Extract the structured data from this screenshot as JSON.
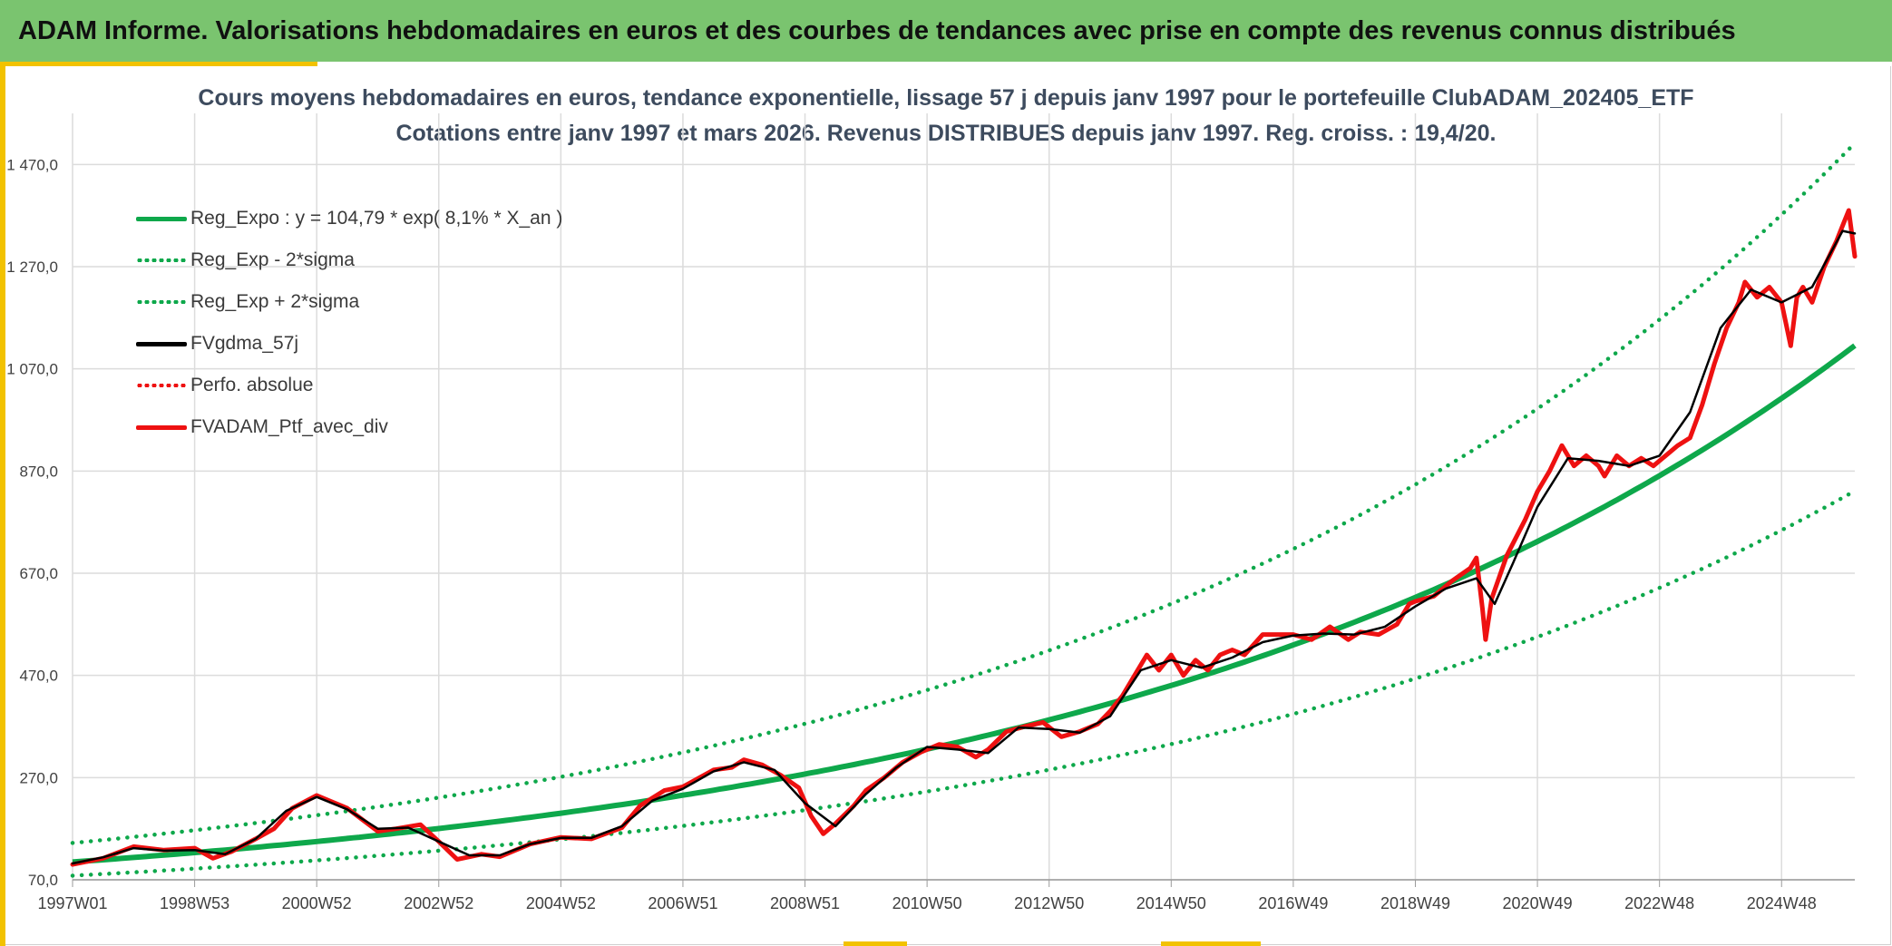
{
  "header": {
    "title": "ADAM Informe. Valorisations hebdomadaires en euros et des courbes de tendances avec prise en compte des revenus connus distribués"
  },
  "colors": {
    "banner": "#7ac46f",
    "accent": "#f2c200",
    "reg_green": "#0ea84b",
    "fvgdma_black": "#000000",
    "ptf_red": "#ee1111"
  },
  "chart_data": {
    "type": "line",
    "title": "Cours moyens hebdomadaires en euros, tendance exponentielle, lissage 57 j depuis janv 1997 pour le portefeuille ClubADAM_202405_ETF",
    "subtitle": "Cotations entre janv 1997 et mars 2026. Revenus DISTRIBUES depuis janv 1997. Reg. croiss. : 19,4/20.",
    "xlabel": "",
    "ylabel": "",
    "xlim": [
      1997.0,
      2026.2
    ],
    "ylim": [
      70,
      1570
    ],
    "y_ticks": [
      70,
      270,
      470,
      670,
      870,
      1070,
      1270,
      1470
    ],
    "y_tick_labels": [
      "70,0",
      "270,0",
      "470,0",
      "670,0",
      "870,0",
      "1 070,0",
      "1 270,0",
      "1 470,0"
    ],
    "x_ticks": [
      1997.0,
      1999.0,
      2001.0,
      2003.0,
      2005.0,
      2007.0,
      2009.0,
      2011.0,
      2013.0,
      2015.0,
      2017.0,
      2019.0,
      2021.0,
      2023.0,
      2025.0
    ],
    "x_tick_labels": [
      "1997W01",
      "1998W53",
      "2000W52",
      "2002W52",
      "2004W52",
      "2006W51",
      "2008W51",
      "2010W50",
      "2012W50",
      "2014W50",
      "2016W49",
      "2018W49",
      "2020W49",
      "2022W48",
      "2024W48"
    ],
    "legend_position": "top-left",
    "legend": [
      {
        "label": "Reg_Expo : y = 104,79 * exp( 8,1% *  X_an )",
        "style": "solid",
        "color": "#0ea84b"
      },
      {
        "label": "Reg_Exp - 2*sigma",
        "style": "dotted",
        "color": "#0ea84b"
      },
      {
        "label": "Reg_Exp + 2*sigma",
        "style": "dotted",
        "color": "#0ea84b"
      },
      {
        "label": "FVgdma_57j",
        "style": "solid",
        "color": "#000000"
      },
      {
        "label": "Perfo. absolue",
        "style": "dotted",
        "color": "#ee1111"
      },
      {
        "label": "FVADAM_Ptf_avec_div",
        "style": "solid",
        "color": "#ee1111"
      }
    ],
    "regression": {
      "a": 104.79,
      "rate": 0.081,
      "lower_factor": 0.745,
      "upper_factor": 1.355,
      "start": 1997.0,
      "end": 2026.2
    },
    "series": [
      {
        "name": "FVADAM_Ptf_avec_div",
        "x": [
          1997.0,
          1997.5,
          1998.0,
          1998.5,
          1999.0,
          1999.3,
          1999.6,
          2000.0,
          2000.3,
          2000.6,
          2001.0,
          2001.5,
          2002.0,
          2002.3,
          2002.7,
          2003.0,
          2003.3,
          2003.7,
          2004.0,
          2004.5,
          2005.0,
          2005.5,
          2006.0,
          2006.3,
          2006.7,
          2007.0,
          2007.5,
          2007.8,
          2008.0,
          2008.3,
          2008.6,
          2008.9,
          2009.1,
          2009.3,
          2009.5,
          2009.8,
          2010.0,
          2010.3,
          2010.6,
          2010.9,
          2011.2,
          2011.5,
          2011.8,
          2012.0,
          2012.3,
          2012.6,
          2012.9,
          2013.2,
          2013.5,
          2013.8,
          2014.0,
          2014.2,
          2014.4,
          2014.6,
          2014.8,
          2015.0,
          2015.2,
          2015.4,
          2015.6,
          2015.8,
          2016.0,
          2016.2,
          2016.5,
          2016.8,
          2017.0,
          2017.3,
          2017.6,
          2017.9,
          2018.1,
          2018.4,
          2018.7,
          2018.9,
          2019.0,
          2019.3,
          2019.6,
          2019.9,
          2020.0,
          2020.1,
          2020.15,
          2020.25,
          2020.5,
          2020.8,
          2021.0,
          2021.2,
          2021.4,
          2021.6,
          2021.8,
          2022.0,
          2022.1,
          2022.3,
          2022.5,
          2022.7,
          2022.9,
          2023.1,
          2023.3,
          2023.5,
          2023.7,
          2023.9,
          2024.1,
          2024.3,
          2024.4,
          2024.6,
          2024.8,
          2025.0,
          2025.15,
          2025.25,
          2025.35,
          2025.5,
          2025.7,
          2025.9,
          2026.0,
          2026.1,
          2026.2
        ],
        "y": [
          100,
          112,
          135,
          128,
          132,
          112,
          125,
          150,
          170,
          210,
          235,
          210,
          165,
          170,
          178,
          145,
          110,
          120,
          115,
          140,
          153,
          150,
          172,
          215,
          245,
          252,
          285,
          290,
          305,
          295,
          275,
          250,
          195,
          160,
          180,
          215,
          245,
          270,
          300,
          320,
          335,
          330,
          310,
          325,
          360,
          370,
          378,
          350,
          360,
          375,
          400,
          430,
          470,
          510,
          480,
          510,
          470,
          500,
          480,
          510,
          520,
          510,
          550,
          550,
          550,
          540,
          565,
          540,
          555,
          550,
          570,
          610,
          615,
          625,
          655,
          680,
          700,
          600,
          540,
          620,
          705,
          775,
          830,
          870,
          920,
          880,
          900,
          880,
          860,
          900,
          880,
          895,
          880,
          900,
          920,
          935,
          1000,
          1080,
          1150,
          1200,
          1240,
          1210,
          1230,
          1200,
          1115,
          1210,
          1230,
          1200,
          1270,
          1320,
          1350,
          1380,
          1290
        ]
      },
      {
        "name": "FVgdma_57j",
        "x": [
          1997.0,
          1997.5,
          1998.0,
          1998.5,
          1999.0,
          1999.5,
          2000.0,
          2000.5,
          2001.0,
          2001.5,
          2002.0,
          2002.5,
          2003.0,
          2003.5,
          2004.0,
          2004.5,
          2005.0,
          2005.5,
          2006.0,
          2006.5,
          2007.0,
          2007.5,
          2008.0,
          2008.5,
          2009.0,
          2009.5,
          2010.0,
          2010.5,
          2011.0,
          2011.5,
          2012.0,
          2012.5,
          2013.0,
          2013.5,
          2014.0,
          2014.5,
          2015.0,
          2015.5,
          2016.0,
          2016.5,
          2017.0,
          2017.5,
          2018.0,
          2018.5,
          2019.0,
          2019.5,
          2020.0,
          2020.3,
          2020.6,
          2021.0,
          2021.5,
          2022.0,
          2022.5,
          2023.0,
          2023.5,
          2024.0,
          2024.5,
          2025.0,
          2025.5,
          2026.0,
          2026.2
        ],
        "y": [
          102,
          114,
          132,
          127,
          128,
          120,
          150,
          205,
          232,
          208,
          170,
          172,
          145,
          118,
          118,
          140,
          152,
          152,
          175,
          225,
          248,
          282,
          300,
          285,
          220,
          175,
          238,
          290,
          330,
          325,
          318,
          368,
          365,
          358,
          390,
          480,
          500,
          485,
          505,
          535,
          548,
          552,
          550,
          565,
          605,
          640,
          660,
          610,
          690,
          800,
          895,
          890,
          880,
          900,
          985,
          1150,
          1225,
          1200,
          1230,
          1340,
          1335
        ]
      }
    ]
  }
}
